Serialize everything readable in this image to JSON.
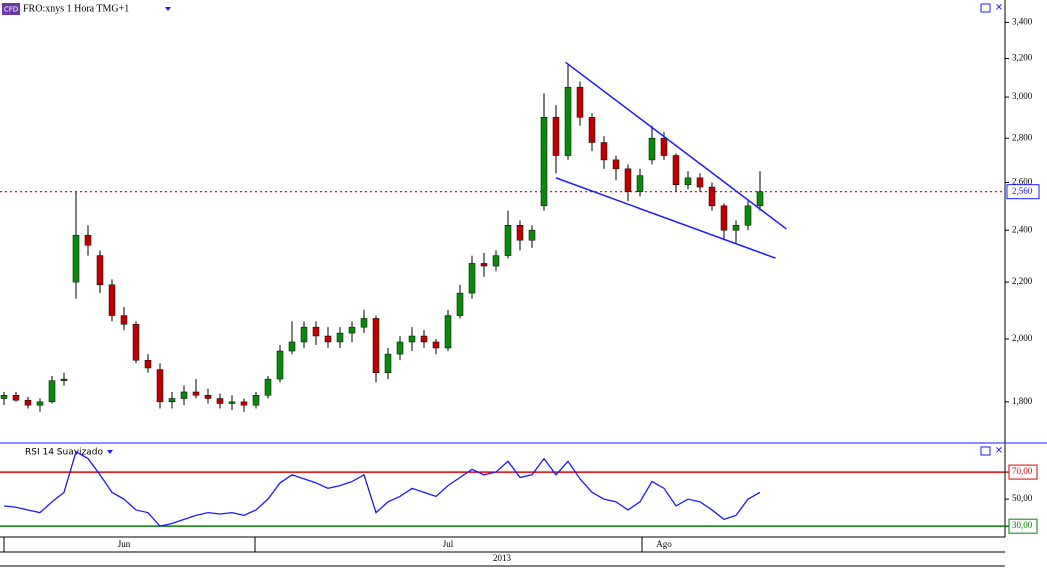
{
  "chart_data": {
    "type": "candlestick",
    "title": "FRO:xnys 1 Hora TMG+1",
    "badge": "CFD",
    "log_scale": true,
    "ylim": [
      1680,
      3530
    ],
    "yticks": [
      {
        "value": 1800,
        "label": "1,800"
      },
      {
        "value": 2000,
        "label": "2,000"
      },
      {
        "value": 2200,
        "label": "2,200"
      },
      {
        "value": 2400,
        "label": "2,400"
      },
      {
        "value": 2600,
        "label": "2,600"
      },
      {
        "value": 2800,
        "label": "2,800"
      },
      {
        "value": 3000,
        "label": "3,000"
      },
      {
        "value": 3200,
        "label": "3,200"
      },
      {
        "value": 3400,
        "label": "3,400"
      }
    ],
    "last_price": {
      "value": 2560,
      "label": "2,560",
      "color": "#d00000"
    },
    "up_color": "#0a8a0a",
    "down_color": "#c00000",
    "categories": [
      null,
      null,
      null,
      null,
      null,
      null,
      null,
      null,
      null,
      null,
      "Jun",
      null,
      null,
      null,
      null,
      null,
      null,
      null,
      null,
      null,
      null,
      null,
      null,
      null,
      null,
      null,
      null,
      null,
      null,
      null,
      null,
      null,
      null,
      null,
      null,
      null,
      null,
      "Jul",
      null,
      null,
      null,
      null,
      null,
      null,
      null,
      null,
      null,
      null,
      null,
      null,
      null,
      null,
      null,
      null,
      null,
      "Ago",
      null,
      null,
      null,
      null,
      null,
      null,
      null,
      null
    ],
    "x_axis_label": "2013",
    "open": [
      1810,
      1820,
      1805,
      1790,
      1800,
      1865,
      2200,
      2380,
      2300,
      2190,
      2080,
      2050,
      1930,
      1900,
      1800,
      1810,
      1830,
      1820,
      1810,
      1795,
      1800,
      1790,
      1820,
      1870,
      1960,
      1990,
      2040,
      2010,
      1990,
      2020,
      2040,
      2070,
      1890,
      1950,
      1990,
      2010,
      1990,
      1970,
      2080,
      2160,
      2270,
      2260,
      2300,
      2420,
      2360,
      2500,
      2900,
      2720,
      3050,
      2900,
      2780,
      2700,
      2660,
      2560,
      2700,
      2800,
      2720,
      2590,
      2620,
      2580,
      2500,
      2400,
      2420,
      2500
    ],
    "high": [
      1830,
      1830,
      1815,
      1810,
      1880,
      1890,
      2560,
      2420,
      2320,
      2210,
      2110,
      2060,
      1950,
      1920,
      1830,
      1850,
      1870,
      1840,
      1825,
      1820,
      1810,
      1830,
      1880,
      1980,
      2060,
      2060,
      2060,
      2040,
      2040,
      2060,
      2100,
      2080,
      1970,
      2010,
      2040,
      2030,
      2000,
      2100,
      2190,
      2300,
      2310,
      2320,
      2480,
      2440,
      2420,
      3020,
      2960,
      3170,
      3080,
      2920,
      2810,
      2720,
      2680,
      2660,
      2860,
      2830,
      2730,
      2650,
      2640,
      2600,
      2510,
      2440,
      2520,
      2650
    ],
    "low": [
      1790,
      1800,
      1780,
      1770,
      1795,
      1850,
      2140,
      2300,
      2160,
      2060,
      2030,
      1920,
      1890,
      1780,
      1780,
      1790,
      1810,
      1795,
      1780,
      1775,
      1770,
      1780,
      1810,
      1860,
      1950,
      1970,
      1980,
      1970,
      1970,
      1990,
      2020,
      1860,
      1870,
      1930,
      1960,
      1970,
      1950,
      1960,
      2070,
      2140,
      2220,
      2240,
      2290,
      2320,
      2330,
      2480,
      2640,
      2700,
      2860,
      2740,
      2660,
      2610,
      2520,
      2540,
      2680,
      2700,
      2560,
      2570,
      2560,
      2480,
      2360,
      2350,
      2400,
      2480
    ],
    "close": [
      1820,
      1805,
      1790,
      1800,
      1865,
      1870,
      2380,
      2340,
      2190,
      2080,
      2050,
      1930,
      1905,
      1800,
      1810,
      1830,
      1820,
      1810,
      1795,
      1800,
      1790,
      1820,
      1870,
      1960,
      1990,
      2040,
      2010,
      1990,
      2020,
      2040,
      2070,
      1890,
      1950,
      1990,
      2010,
      1990,
      1970,
      2080,
      2160,
      2270,
      2260,
      2300,
      2420,
      2360,
      2400,
      2900,
      2720,
      3050,
      2900,
      2780,
      2700,
      2660,
      2560,
      2630,
      2800,
      2720,
      2590,
      2620,
      2580,
      2500,
      2400,
      2420,
      2500,
      2560
    ],
    "trend_lines": [
      {
        "color": "#1a1aff",
        "x": [
          46.8,
          65.2
        ],
        "y": [
          3180,
          2405
        ]
      },
      {
        "color": "#1a1aff",
        "x": [
          46,
          64.3
        ],
        "y": [
          2620,
          2290
        ]
      }
    ],
    "indicator": {
      "type": "line",
      "title": "RSI 14 Suavizado",
      "color": "#1a1aff",
      "ylim": [
        22,
        91.5
      ],
      "yticks": [
        {
          "value": 30,
          "label": "30,00"
        },
        {
          "value": 50,
          "label": "50,00"
        },
        {
          "value": 70,
          "label": "70,00"
        }
      ],
      "levels": [
        {
          "value": 70,
          "color": "#e00000"
        },
        {
          "value": 30,
          "color": "#008000"
        }
      ],
      "values": [
        45,
        44,
        42,
        40,
        48,
        55,
        85,
        80,
        68,
        55,
        50,
        42,
        40,
        30,
        32,
        35,
        38,
        40,
        39,
        40,
        38,
        42,
        50,
        62,
        68,
        65,
        62,
        58,
        60,
        63,
        68,
        40,
        48,
        52,
        58,
        55,
        52,
        60,
        66,
        72,
        68,
        70,
        78,
        66,
        68,
        80,
        68,
        78,
        65,
        55,
        50,
        48,
        42,
        48,
        63,
        58,
        45,
        50,
        48,
        42,
        35,
        38,
        50,
        55
      ]
    }
  }
}
